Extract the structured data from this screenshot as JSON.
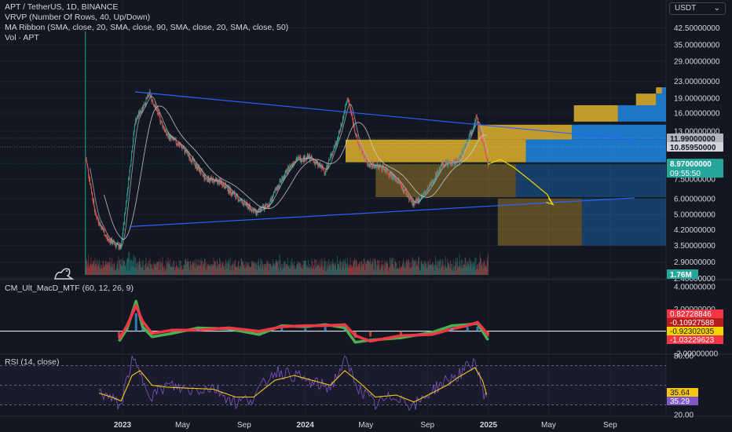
{
  "header": {
    "symbol_line": "APT / TetherUS, 1D, BINANCE",
    "indicators": [
      "VRVP (Number Of Rows, 40, Up/Down)",
      "MA Ribbon (SMA, close, 20, SMA, close, 90, SMA, close, 20, SMA, close, 50)",
      "Vol · APT"
    ],
    "currency": "USDT"
  },
  "macd_panel": {
    "title": "CM_Ult_MacD_MTF (60, 12, 26, 9)"
  },
  "rsi_panel": {
    "title": "RSI (14, close)"
  },
  "colors": {
    "background": "#131722",
    "grid": "#1e222d",
    "candle_up": "#26a69a",
    "candle_down": "#ef5350",
    "trendline": "#2962ff",
    "projection": "#f5d400",
    "rsi_line": "#7e57c2",
    "rsi_ma": "#f5c518",
    "macd_up": "#4caf50",
    "macd_down": "#f23645",
    "vp_up": "#e0b12e",
    "vp_down": "#1e88e5"
  },
  "chart_data": [
    {
      "type": "candlestick",
      "title": "APT / TetherUS, 1D, BINANCE",
      "y_scale": "log",
      "ylim": [
        2.5,
        48
      ],
      "x_ticks": [
        "2023",
        "May",
        "Sep",
        "2024",
        "May",
        "Sep",
        "2025",
        "May",
        "Sep"
      ],
      "y_ticks": [
        "42.50000000",
        "35.00000000",
        "29.00000000",
        "23.00000000",
        "19.00000000",
        "16.00000000",
        "13.00000000",
        "11.99000000",
        "10.85950000",
        "8.97000000",
        "7.50000000",
        "6.00000000",
        "5.00000000",
        "4.20000000",
        "3.50000000",
        "2.90000000",
        "2.40000000"
      ],
      "x": [
        "2022-10-20",
        "2022-11-08",
        "2022-12-01",
        "2022-12-29",
        "2023-01-26",
        "2023-02-24",
        "2023-03-30",
        "2023-05-01",
        "2023-06-15",
        "2023-07-18",
        "2023-08-20",
        "2023-09-25",
        "2023-10-20",
        "2023-11-15",
        "2023-12-12",
        "2024-01-10",
        "2024-02-10",
        "2024-03-08",
        "2024-03-26",
        "2024-04-14",
        "2024-05-05",
        "2024-06-04",
        "2024-07-05",
        "2024-08-05",
        "2024-09-01",
        "2024-10-01",
        "2024-11-02",
        "2024-12-01",
        "2024-12-08",
        "2024-12-20",
        "2024-12-31"
      ],
      "close": [
        9.5,
        5.0,
        3.8,
        3.4,
        14.5,
        20.0,
        12.5,
        10.8,
        7.6,
        7.2,
        6.0,
        5.1,
        5.6,
        7.5,
        9.4,
        9.6,
        8.2,
        12.5,
        19.0,
        11.5,
        8.9,
        8.6,
        7.3,
        5.6,
        6.6,
        8.9,
        9.2,
        13.8,
        15.2,
        11.5,
        9.0
      ],
      "high_marks": [
        {
          "x": "2023-01-26",
          "value": 20.4
        },
        {
          "x": "2024-03-26",
          "value": 19.9
        },
        {
          "x": "2024-12-08",
          "value": 15.4
        }
      ],
      "trendlines": [
        {
          "name": "upper",
          "from": {
            "x": "2023-01-26",
            "value": 20.4
          },
          "to": {
            "x": "2025-10-20",
            "value": 11.8
          }
        },
        {
          "name": "lower",
          "from": {
            "x": "2023-01-15",
            "value": 4.35
          },
          "to": {
            "x": "2025-10-20",
            "value": 6.05
          }
        }
      ],
      "projection_path": [
        {
          "x": "2024-12-31",
          "value": 8.9
        },
        {
          "x": "2025-01-25",
          "value": 9.4
        },
        {
          "x": "2025-02-20",
          "value": 8.6
        },
        {
          "x": "2025-03-25",
          "value": 7.4
        },
        {
          "x": "2025-04-28",
          "value": 6.3
        },
        {
          "x": "2025-05-10",
          "value": 5.6
        }
      ],
      "price_labels": [
        {
          "value": 11.99,
          "label": "11.99000000",
          "bg": "#b2b5be",
          "color": "#131722"
        },
        {
          "value": 10.8595,
          "label": "10.85950000",
          "bg": "#d1d4dc",
          "color": "#131722"
        },
        {
          "value": 8.97,
          "label": "8.97000000",
          "sub": "09:55:50",
          "bg": "#26a69a",
          "color": "#ffffff"
        }
      ],
      "volume_label": "1.76M",
      "volume_profile": {
        "rows": [
          {
            "low": 20.0,
            "high": 21.5,
            "up": 0.03,
            "down": 0.02
          },
          {
            "low": 17.5,
            "high": 20.0,
            "up": 0.1,
            "down": 0.05
          },
          {
            "low": 14.5,
            "high": 17.5,
            "up": 0.22,
            "down": 0.24
          },
          {
            "low": 11.8,
            "high": 14.0,
            "up": 0.47,
            "down": 0.47
          },
          {
            "low": 9.1,
            "high": 11.8,
            "up": 0.9,
            "down": 0.7
          },
          {
            "low": 6.1,
            "high": 8.9,
            "up": 0.7,
            "down": 0.75
          },
          {
            "low": 3.5,
            "high": 6.0,
            "up": 0.42,
            "down": 0.42
          }
        ]
      }
    },
    {
      "type": "line",
      "title": "CM_Ult_MacD_MTF (60, 12, 26, 9)",
      "ylim": [
        -2.0,
        4.0
      ],
      "y_ticks": [
        "4.00000000",
        "2.00000000",
        "-2.00000000"
      ],
      "x": [
        "2022-12-25",
        "2023-01-10",
        "2023-01-28",
        "2023-02-10",
        "2023-03-01",
        "2023-04-10",
        "2023-06-01",
        "2023-08-01",
        "2023-10-01",
        "2023-11-15",
        "2024-01-01",
        "2024-02-10",
        "2024-03-20",
        "2024-04-10",
        "2024-05-10",
        "2024-07-10",
        "2024-09-10",
        "2024-10-20",
        "2024-11-20",
        "2024-12-10",
        "2024-12-31"
      ],
      "series": [
        {
          "name": "",
          "color": "#4caf50",
          "values": [
            -0.9,
            0.2,
            2.7,
            0.4,
            -0.5,
            -0.2,
            0.3,
            0.2,
            -0.3,
            0.5,
            0.4,
            0.6,
            0.3,
            -1.0,
            -0.8,
            -0.6,
            -0.1,
            0.5,
            0.6,
            0.7,
            -0.8
          ]
        },
        {
          "name": "",
          "color": "#f23645",
          "values": [
            -0.7,
            0.5,
            2.3,
            0.9,
            -0.2,
            0.1,
            0.1,
            0.3,
            0.0,
            0.4,
            0.5,
            0.5,
            0.6,
            -0.4,
            -0.9,
            -0.4,
            -0.3,
            0.2,
            0.5,
            0.8,
            -0.3
          ]
        }
      ],
      "value_labels": [
        {
          "value": 0.82728846,
          "label": "0.82728846",
          "bg": "#f23645"
        },
        {
          "value": -0.10927588,
          "label": "-0.10927588",
          "bg": "#b71c1c"
        },
        {
          "value": -0.92302035,
          "label": "-0.92302035",
          "bg": "#f5d400"
        },
        {
          "value": -1.03229623,
          "label": "-1.03229623",
          "bg": "#f23645"
        }
      ]
    },
    {
      "type": "line",
      "title": "RSI (14, close)",
      "ylim": [
        20,
        80
      ],
      "y_ticks": [
        "80.00",
        "20.00"
      ],
      "bands": [
        70,
        50,
        30
      ],
      "x": [
        "2022-11-15",
        "2022-12-10",
        "2022-12-29",
        "2023-01-20",
        "2023-02-05",
        "2023-03-01",
        "2023-04-01",
        "2023-05-15",
        "2023-07-01",
        "2023-08-15",
        "2023-09-20",
        "2023-11-01",
        "2023-12-10",
        "2024-01-15",
        "2024-02-20",
        "2024-03-20",
        "2024-04-20",
        "2024-05-20",
        "2024-07-01",
        "2024-08-05",
        "2024-09-10",
        "2024-10-10",
        "2024-11-01",
        "2024-12-05",
        "2024-12-20",
        "2024-12-31"
      ],
      "series": [
        {
          "name": "RSI",
          "color": "#7e57c2",
          "values": [
            45,
            35,
            30,
            78,
            60,
            40,
            50,
            45,
            48,
            32,
            38,
            65,
            60,
            52,
            48,
            75,
            45,
            30,
            40,
            28,
            45,
            55,
            60,
            75,
            45,
            35.29
          ]
        },
        {
          "name": "MA",
          "color": "#f5c518",
          "values": [
            42,
            38,
            34,
            60,
            65,
            50,
            48,
            47,
            46,
            38,
            38,
            55,
            60,
            55,
            50,
            65,
            52,
            38,
            40,
            33,
            42,
            50,
            58,
            68,
            55,
            35.64
          ]
        }
      ],
      "value_labels": [
        {
          "value": 35.64,
          "label": "35.64",
          "bg": "#f5c518"
        },
        {
          "value": 35.29,
          "label": "35.29",
          "bg": "#7e57c2"
        }
      ]
    }
  ]
}
